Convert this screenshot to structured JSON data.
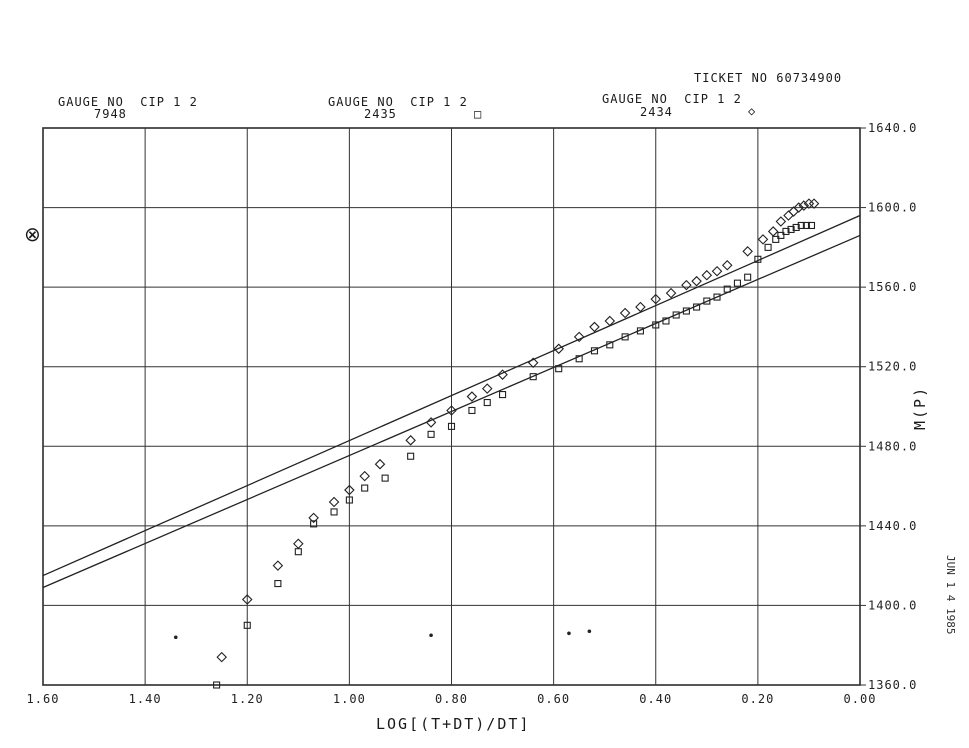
{
  "header": {
    "ticket": "TICKET NO 60734900",
    "gauges": [
      {
        "label": "GAUGE NO  CIP 1 2",
        "number": "7948",
        "symbol": ""
      },
      {
        "label": "GAUGE NO  CIP 1 2",
        "number": "2435",
        "symbol": "□"
      },
      {
        "label": "GAUGE NO  CIP 1 2",
        "number": "2434",
        "symbol": "◇"
      }
    ]
  },
  "stamp": "JUN 1 4 1985",
  "margin_mark": "⊗",
  "chart_data": {
    "type": "scatter",
    "xlabel": "LOG[(T+DT)/DT]",
    "ylabel": "M(P)",
    "x_range": [
      1.6,
      0.0
    ],
    "y_range": [
      1360,
      1640
    ],
    "x_ticks": [
      "1.60",
      "1.40",
      "1.20",
      "1.00",
      "0.80",
      "0.60",
      "0.40",
      "0.20",
      "0.00"
    ],
    "y_ticks": [
      "1640.0",
      "1600.0",
      "1560.0",
      "1520.0",
      "1480.0",
      "1440.0",
      "1400.0",
      "1360.0"
    ],
    "grid": true,
    "series": [
      {
        "marker": "square",
        "points": [
          [
            1.26,
            1360
          ],
          [
            1.2,
            1390
          ],
          [
            1.14,
            1411
          ],
          [
            1.1,
            1427
          ],
          [
            1.07,
            1441
          ],
          [
            1.03,
            1447
          ],
          [
            1.0,
            1453
          ],
          [
            0.97,
            1459
          ],
          [
            0.93,
            1464
          ],
          [
            0.88,
            1475
          ],
          [
            0.84,
            1486
          ],
          [
            0.8,
            1490
          ],
          [
            0.76,
            1498
          ],
          [
            0.73,
            1502
          ],
          [
            0.7,
            1506
          ],
          [
            0.64,
            1515
          ],
          [
            0.59,
            1519
          ],
          [
            0.55,
            1524
          ],
          [
            0.52,
            1528
          ],
          [
            0.49,
            1531
          ],
          [
            0.46,
            1535
          ],
          [
            0.43,
            1538
          ],
          [
            0.4,
            1541
          ],
          [
            0.38,
            1543
          ],
          [
            0.36,
            1546
          ],
          [
            0.34,
            1548
          ],
          [
            0.32,
            1550
          ],
          [
            0.3,
            1553
          ],
          [
            0.28,
            1555
          ],
          [
            0.26,
            1559
          ],
          [
            0.24,
            1562
          ],
          [
            0.22,
            1565
          ],
          [
            0.2,
            1574
          ],
          [
            0.18,
            1580
          ],
          [
            0.165,
            1584
          ],
          [
            0.155,
            1586
          ],
          [
            0.145,
            1588
          ],
          [
            0.135,
            1589
          ],
          [
            0.125,
            1590
          ],
          [
            0.115,
            1591
          ],
          [
            0.105,
            1591
          ],
          [
            0.095,
            1591
          ]
        ]
      },
      {
        "marker": "diamond",
        "points": [
          [
            1.25,
            1374
          ],
          [
            1.2,
            1403
          ],
          [
            1.14,
            1420
          ],
          [
            1.1,
            1431
          ],
          [
            1.07,
            1444
          ],
          [
            1.03,
            1452
          ],
          [
            1.0,
            1458
          ],
          [
            0.97,
            1465
          ],
          [
            0.94,
            1471
          ],
          [
            0.88,
            1483
          ],
          [
            0.84,
            1492
          ],
          [
            0.8,
            1498
          ],
          [
            0.76,
            1505
          ],
          [
            0.73,
            1509
          ],
          [
            0.7,
            1516
          ],
          [
            0.64,
            1522
          ],
          [
            0.59,
            1529
          ],
          [
            0.55,
            1535
          ],
          [
            0.52,
            1540
          ],
          [
            0.49,
            1543
          ],
          [
            0.46,
            1547
          ],
          [
            0.43,
            1550
          ],
          [
            0.4,
            1554
          ],
          [
            0.37,
            1557
          ],
          [
            0.34,
            1561
          ],
          [
            0.32,
            1563
          ],
          [
            0.3,
            1566
          ],
          [
            0.28,
            1568
          ],
          [
            0.26,
            1571
          ],
          [
            0.22,
            1578
          ],
          [
            0.19,
            1584
          ],
          [
            0.17,
            1588
          ],
          [
            0.155,
            1593
          ],
          [
            0.14,
            1596
          ],
          [
            0.13,
            1598
          ],
          [
            0.12,
            1600
          ],
          [
            0.11,
            1601
          ],
          [
            0.1,
            1602
          ],
          [
            0.09,
            1602
          ]
        ]
      },
      {
        "marker": "dot",
        "points": [
          [
            1.34,
            1384
          ],
          [
            0.84,
            1385
          ],
          [
            0.57,
            1386
          ],
          [
            0.53,
            1387
          ]
        ]
      }
    ],
    "lines": [
      {
        "from": [
          1.6,
          1415
        ],
        "to": [
          0.0,
          1596
        ]
      },
      {
        "from": [
          1.6,
          1409
        ],
        "to": [
          0.0,
          1586
        ]
      }
    ]
  }
}
